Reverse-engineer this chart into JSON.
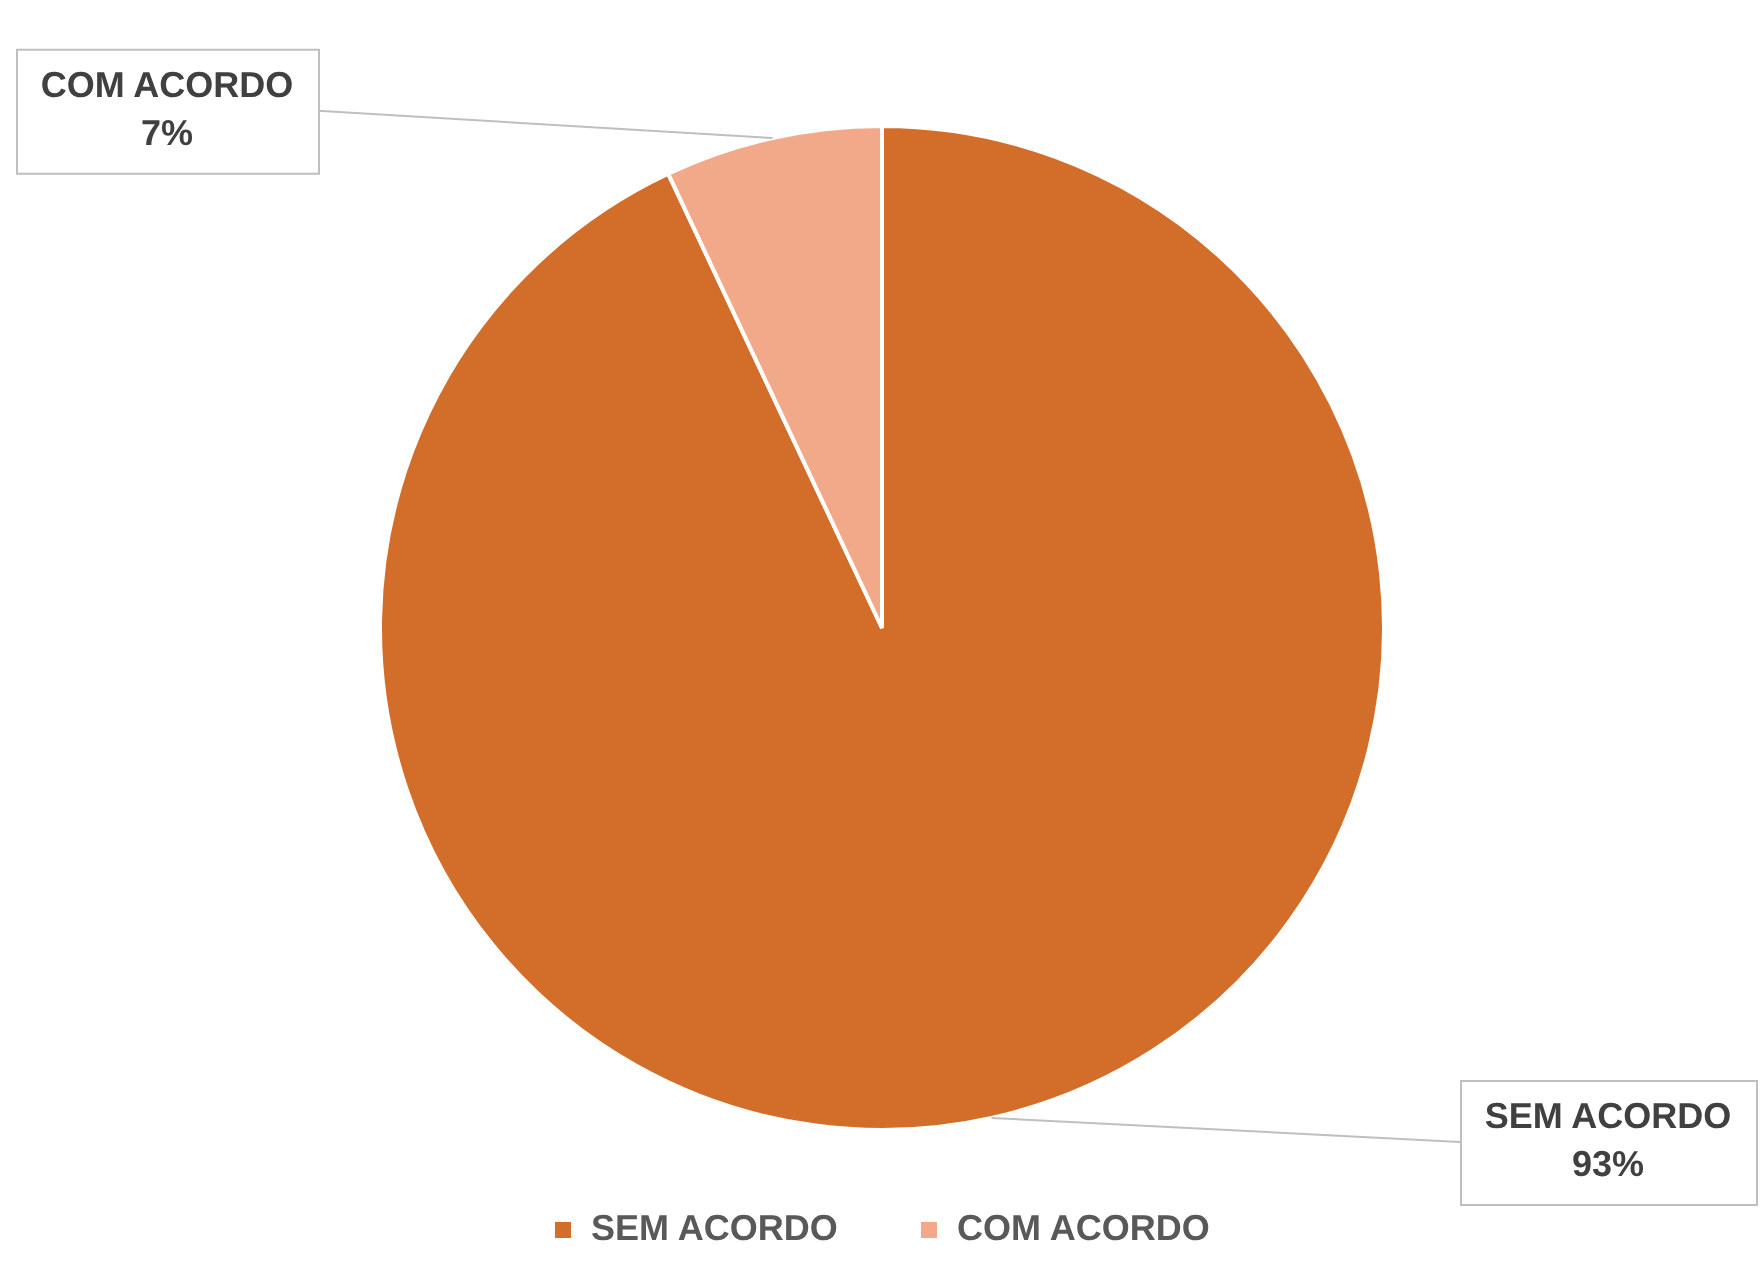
{
  "chart_data": {
    "type": "pie",
    "categories": [
      "SEM ACORDO",
      "COM ACORDO"
    ],
    "values": [
      93,
      7
    ],
    "colors": [
      "#d36e2a",
      "#f2a98a"
    ],
    "value_labels": [
      "93%",
      "7%"
    ],
    "legend": "bottom"
  }
}
